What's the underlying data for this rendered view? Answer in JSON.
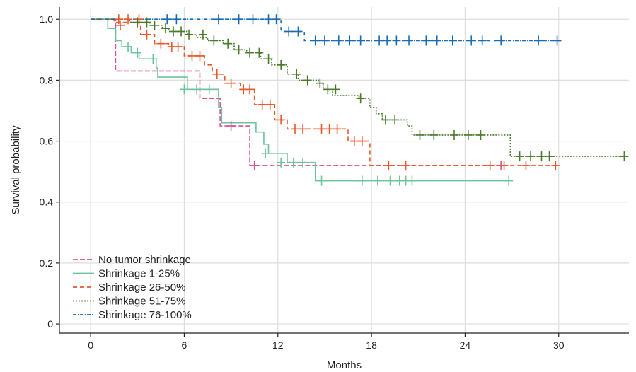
{
  "chart_data": {
    "type": "line",
    "step": true,
    "xlabel": "Months",
    "ylabel": "Survival probability",
    "xlim": [
      -2,
      34.5
    ],
    "ylim": [
      -0.03,
      1.04
    ],
    "xticks": [
      0,
      6,
      12,
      18,
      24,
      30
    ],
    "yticks": [
      0,
      0.2,
      0.4,
      0.6,
      0.8,
      1.0
    ],
    "xtick_labels": [
      "0",
      "6",
      "12",
      "18",
      "24",
      "30"
    ],
    "ytick_labels": [
      "0",
      "0.2",
      "0.4",
      "0.6",
      "0.8",
      "1.0"
    ],
    "grid": true,
    "legend_position": "bottom-left",
    "series": [
      {
        "name": "No tumor shrinkage",
        "color": "#d9519a",
        "dash": "7 3",
        "steps": [
          [
            0,
            1.0
          ],
          [
            1.6,
            0.83
          ],
          [
            7.0,
            0.74
          ],
          [
            8.3,
            0.65
          ],
          [
            10.2,
            0.52
          ],
          [
            26.5,
            0.52
          ]
        ],
        "censors": [
          [
            9.0,
            0.65
          ],
          [
            10.5,
            0.52
          ],
          [
            26.3,
            0.52
          ]
        ]
      },
      {
        "name": "Shrinkage 1-25%",
        "color": "#6cc49d",
        "dash": "",
        "steps": [
          [
            0,
            1.0
          ],
          [
            1.1,
            0.97
          ],
          [
            1.6,
            0.93
          ],
          [
            2.0,
            0.91
          ],
          [
            2.6,
            0.89
          ],
          [
            3.1,
            0.87
          ],
          [
            4.2,
            0.84
          ],
          [
            4.3,
            0.81
          ],
          [
            6.2,
            0.77
          ],
          [
            8.2,
            0.71
          ],
          [
            8.4,
            0.66
          ],
          [
            10.6,
            0.63
          ],
          [
            11.1,
            0.59
          ],
          [
            11.4,
            0.56
          ],
          [
            12.6,
            0.53
          ],
          [
            14.4,
            0.47
          ],
          [
            26.9,
            0.47
          ]
        ],
        "censors": [
          [
            2.4,
            0.91
          ],
          [
            3.0,
            0.89
          ],
          [
            4.0,
            0.87
          ],
          [
            6.0,
            0.77
          ],
          [
            6.8,
            0.77
          ],
          [
            7.6,
            0.77
          ],
          [
            11.2,
            0.56
          ],
          [
            12.2,
            0.53
          ],
          [
            13.0,
            0.53
          ],
          [
            13.6,
            0.53
          ],
          [
            14.8,
            0.47
          ],
          [
            17.4,
            0.47
          ],
          [
            18.4,
            0.47
          ],
          [
            19.2,
            0.47
          ],
          [
            19.8,
            0.47
          ],
          [
            20.2,
            0.47
          ],
          [
            20.6,
            0.47
          ],
          [
            26.8,
            0.47
          ]
        ]
      },
      {
        "name": "Shrinkage 26-50%",
        "color": "#e8582a",
        "dash": "6 4",
        "steps": [
          [
            0,
            1.0
          ],
          [
            1.5,
            0.99
          ],
          [
            3.2,
            0.95
          ],
          [
            4.1,
            0.92
          ],
          [
            5.0,
            0.91
          ],
          [
            6.0,
            0.88
          ],
          [
            7.3,
            0.85
          ],
          [
            7.8,
            0.82
          ],
          [
            8.6,
            0.79
          ],
          [
            9.6,
            0.77
          ],
          [
            10.5,
            0.72
          ],
          [
            11.8,
            0.67
          ],
          [
            12.6,
            0.64
          ],
          [
            16.5,
            0.6
          ],
          [
            17.9,
            0.52
          ],
          [
            30.0,
            0.52
          ]
        ],
        "censors": [
          [
            1.8,
            1.0
          ],
          [
            2.4,
            1.0
          ],
          [
            3.1,
            1.0
          ],
          [
            1.9,
            0.98
          ],
          [
            3.6,
            0.95
          ],
          [
            4.5,
            0.92
          ],
          [
            5.2,
            0.91
          ],
          [
            5.6,
            0.91
          ],
          [
            6.5,
            0.88
          ],
          [
            7.0,
            0.88
          ],
          [
            8.1,
            0.82
          ],
          [
            9.0,
            0.79
          ],
          [
            9.8,
            0.77
          ],
          [
            10.2,
            0.77
          ],
          [
            11.0,
            0.72
          ],
          [
            11.5,
            0.72
          ],
          [
            12.2,
            0.67
          ],
          [
            13.1,
            0.64
          ],
          [
            13.6,
            0.64
          ],
          [
            14.8,
            0.64
          ],
          [
            15.3,
            0.64
          ],
          [
            15.8,
            0.64
          ],
          [
            16.9,
            0.6
          ],
          [
            17.4,
            0.6
          ],
          [
            19.1,
            0.52
          ],
          [
            20.2,
            0.52
          ],
          [
            25.6,
            0.52
          ],
          [
            26.5,
            0.52
          ],
          [
            27.9,
            0.52
          ],
          [
            29.8,
            0.52
          ]
        ]
      },
      {
        "name": "Shrinkage 51-75%",
        "color": "#4a7a2c",
        "dash": "2 2",
        "steps": [
          [
            0,
            1.0
          ],
          [
            2.5,
            0.99
          ],
          [
            3.8,
            0.98
          ],
          [
            4.6,
            0.97
          ],
          [
            5.0,
            0.96
          ],
          [
            6.2,
            0.95
          ],
          [
            6.8,
            0.94
          ],
          [
            7.5,
            0.93
          ],
          [
            8.5,
            0.92
          ],
          [
            9.2,
            0.9
          ],
          [
            10.0,
            0.89
          ],
          [
            10.9,
            0.87
          ],
          [
            11.6,
            0.85
          ],
          [
            12.6,
            0.82
          ],
          [
            13.3,
            0.8
          ],
          [
            14.6,
            0.79
          ],
          [
            14.9,
            0.77
          ],
          [
            15.5,
            0.75
          ],
          [
            17.2,
            0.74
          ],
          [
            17.9,
            0.71
          ],
          [
            18.3,
            0.69
          ],
          [
            18.7,
            0.67
          ],
          [
            20.3,
            0.65
          ],
          [
            20.6,
            0.62
          ],
          [
            26.9,
            0.55
          ],
          [
            34.3,
            0.55
          ]
        ],
        "censors": [
          [
            3.0,
            0.99
          ],
          [
            3.6,
            0.99
          ],
          [
            4.1,
            0.98
          ],
          [
            4.8,
            0.97
          ],
          [
            5.3,
            0.96
          ],
          [
            5.8,
            0.96
          ],
          [
            6.3,
            0.95
          ],
          [
            7.2,
            0.95
          ],
          [
            7.9,
            0.93
          ],
          [
            8.8,
            0.92
          ],
          [
            9.5,
            0.9
          ],
          [
            10.2,
            0.89
          ],
          [
            10.8,
            0.89
          ],
          [
            11.4,
            0.87
          ],
          [
            12.2,
            0.85
          ],
          [
            13.2,
            0.82
          ],
          [
            13.9,
            0.8
          ],
          [
            14.7,
            0.79
          ],
          [
            15.2,
            0.77
          ],
          [
            15.7,
            0.77
          ],
          [
            17.3,
            0.74
          ],
          [
            18.9,
            0.67
          ],
          [
            19.5,
            0.67
          ],
          [
            21.1,
            0.62
          ],
          [
            22.0,
            0.62
          ],
          [
            23.3,
            0.62
          ],
          [
            24.2,
            0.62
          ],
          [
            25.0,
            0.62
          ],
          [
            27.5,
            0.55
          ],
          [
            28.2,
            0.55
          ],
          [
            28.9,
            0.55
          ],
          [
            29.4,
            0.55
          ],
          [
            34.2,
            0.55
          ]
        ]
      },
      {
        "name": "Shrinkage 76-100%",
        "color": "#1a6bb0",
        "dash": "5 2 1 2",
        "steps": [
          [
            0,
            1.0
          ],
          [
            12.2,
            0.96
          ],
          [
            13.7,
            0.93
          ],
          [
            30.2,
            0.93
          ]
        ],
        "censors": [
          [
            4.9,
            1.0
          ],
          [
            5.5,
            1.0
          ],
          [
            8.2,
            1.0
          ],
          [
            9.5,
            1.0
          ],
          [
            10.4,
            1.0
          ],
          [
            11.4,
            1.0
          ],
          [
            11.9,
            1.0
          ],
          [
            12.7,
            0.96
          ],
          [
            13.3,
            0.96
          ],
          [
            14.4,
            0.93
          ],
          [
            15.0,
            0.93
          ],
          [
            15.9,
            0.93
          ],
          [
            16.6,
            0.93
          ],
          [
            17.3,
            0.93
          ],
          [
            18.5,
            0.93
          ],
          [
            19.0,
            0.93
          ],
          [
            19.6,
            0.93
          ],
          [
            20.4,
            0.93
          ],
          [
            21.5,
            0.93
          ],
          [
            22.2,
            0.93
          ],
          [
            23.2,
            0.93
          ],
          [
            24.4,
            0.93
          ],
          [
            25.1,
            0.93
          ],
          [
            26.3,
            0.93
          ],
          [
            28.7,
            0.93
          ],
          [
            29.9,
            0.93
          ]
        ]
      }
    ]
  }
}
